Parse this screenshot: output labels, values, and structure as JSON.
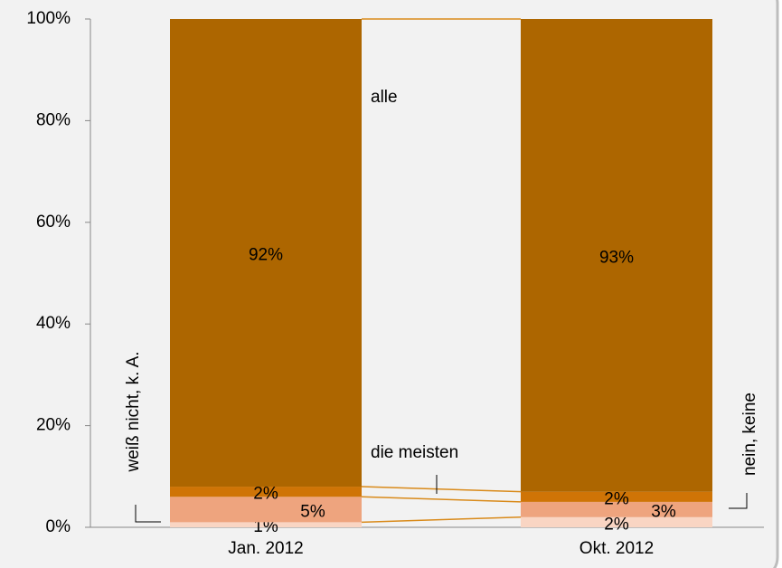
{
  "chart_data": {
    "type": "stacked_bar",
    "categories": [
      "Jan. 2012",
      "Okt. 2012"
    ],
    "series": [
      {
        "name": "weiß nicht, k. A.",
        "color": "#f9d5c3",
        "values": [
          1,
          2
        ],
        "value_labels": [
          "1%",
          "2%"
        ]
      },
      {
        "name": "nein, keine",
        "color": "#eea47e",
        "values": [
          5,
          3
        ],
        "value_labels": [
          "5%",
          "3%"
        ]
      },
      {
        "name": "die meisten",
        "color": "#cf7406",
        "values": [
          2,
          2
        ],
        "value_labels": [
          "2%",
          "2%"
        ]
      },
      {
        "name": "alle",
        "color": "#ad6600",
        "values": [
          92,
          93
        ],
        "value_labels": [
          "92%",
          "93%"
        ]
      }
    ],
    "ylim": [
      0,
      100
    ],
    "yticks": [
      {
        "value": 0,
        "label": "0%"
      },
      {
        "value": 20,
        "label": "20%"
      },
      {
        "value": 40,
        "label": "40%"
      },
      {
        "value": 60,
        "label": "60%"
      },
      {
        "value": 80,
        "label": "80%"
      },
      {
        "value": 100,
        "label": "100%"
      }
    ]
  }
}
